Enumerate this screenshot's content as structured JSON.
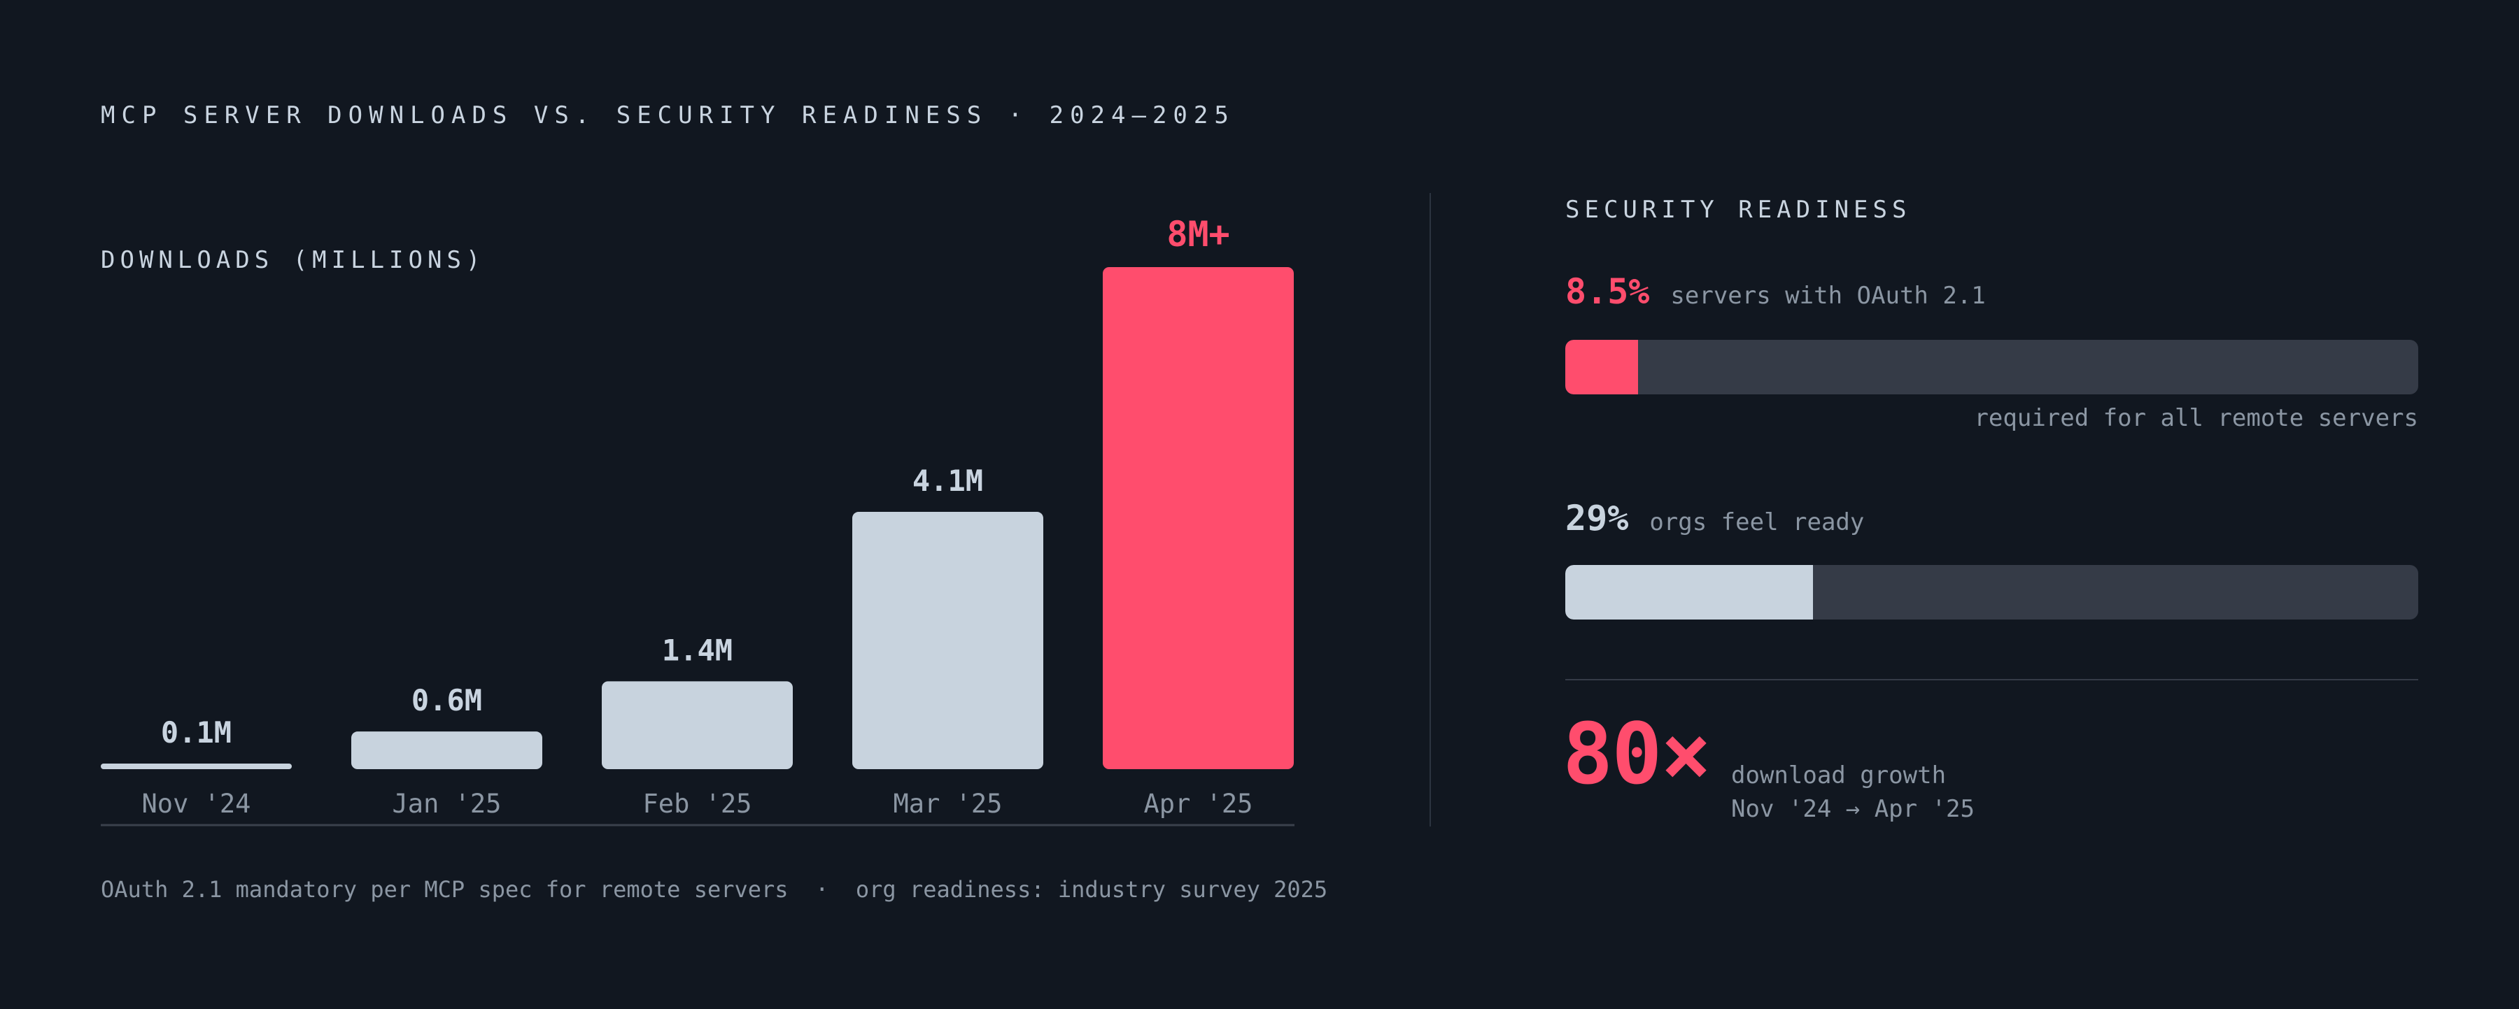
{
  "title": "MCP SERVER DOWNLOADS VS. SECURITY READINESS · 2024–2025",
  "colors": {
    "background": "#111720",
    "bar_default": "#c8d3de",
    "accent": "#ff4d6d",
    "track": "#353b47",
    "muted_text": "#8b96a3",
    "axis": "#3a414c"
  },
  "chart_data": {
    "type": "bar",
    "ylabel": "DOWNLOADS (MILLIONS)",
    "categories": [
      "Nov '24",
      "Jan '25",
      "Feb '25",
      "Mar '25",
      "Apr '25"
    ],
    "values": [
      0.1,
      0.6,
      1.4,
      4.1,
      8.0
    ],
    "value_labels": [
      "0.1M",
      "0.6M",
      "1.4M",
      "4.1M",
      "8M+"
    ],
    "highlight_index": 4,
    "ylim": [
      0,
      8
    ],
    "grid": false
  },
  "security": {
    "title": "SECURITY READINESS",
    "metrics": [
      {
        "value": "8.5%",
        "desc": "servers with OAuth 2.1",
        "fraction": 0.085,
        "color": "#ff4d6d",
        "note": "required for all remote servers"
      },
      {
        "value": "29%",
        "desc": "orgs feel ready",
        "fraction": 0.29,
        "color": "#c8d3de"
      }
    ],
    "growth": {
      "value": "80×",
      "line1": "download growth",
      "line2": "Nov '24 → Apr '25"
    }
  },
  "footnote": "OAuth 2.1 mandatory per MCP spec for remote servers  ·  org readiness: industry survey 2025"
}
